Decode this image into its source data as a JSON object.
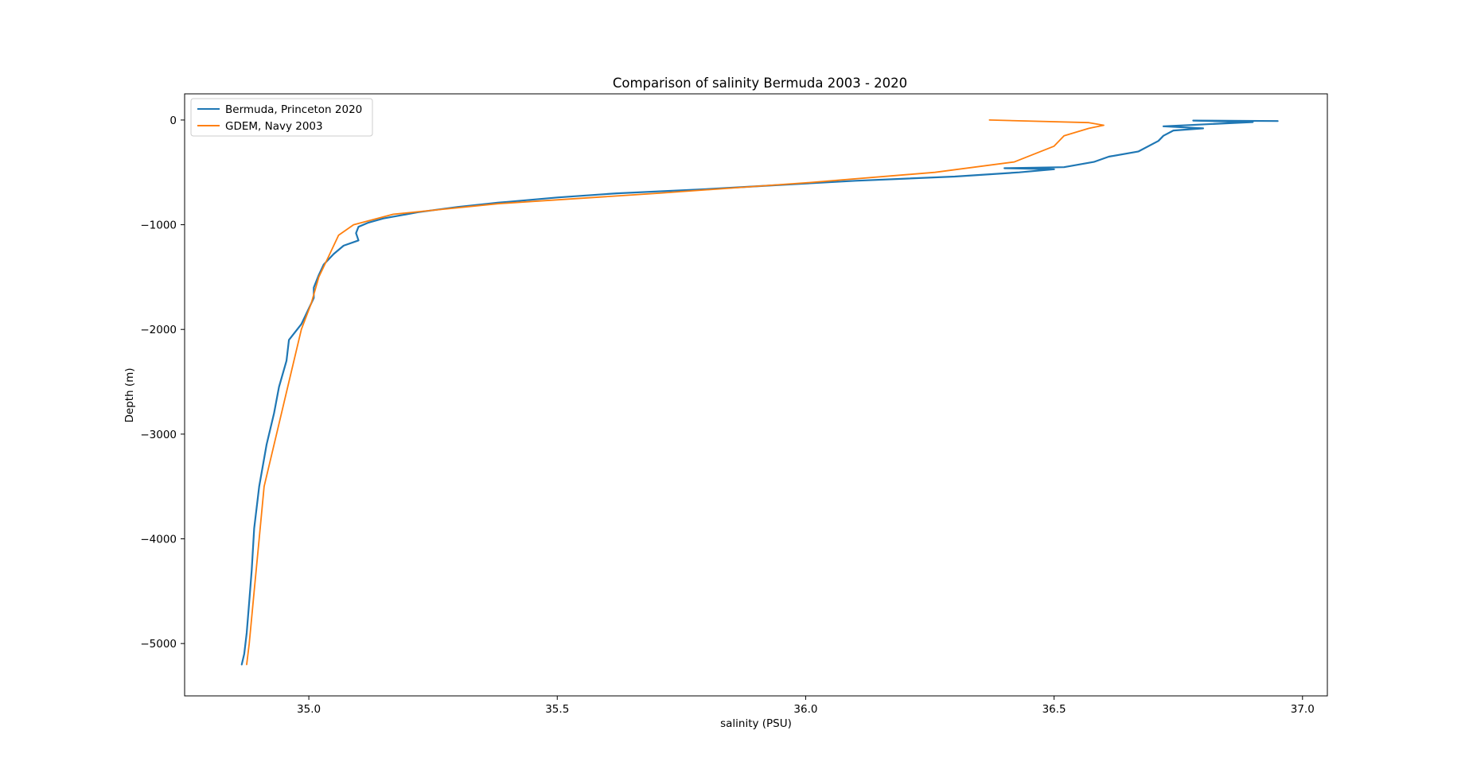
{
  "chart_data": {
    "type": "line",
    "title": "Comparison of salinity Bermuda 2003 - 2020",
    "xlabel": "salinity (PSU)",
    "ylabel": "Depth (m)",
    "xlim": [
      34.75,
      37.05
    ],
    "ylim": [
      -5500,
      250
    ],
    "x_ticks": [
      35.0,
      35.5,
      36.0,
      36.5,
      37.0
    ],
    "x_tick_labels": [
      "35.0",
      "35.5",
      "36.0",
      "36.5",
      "37.0"
    ],
    "y_ticks": [
      0,
      -1000,
      -2000,
      -3000,
      -4000,
      -5000
    ],
    "y_tick_labels": [
      "0",
      "−1000",
      "−2000",
      "−3000",
      "−4000",
      "−5000"
    ],
    "grid": false,
    "legend_position": "upper-left",
    "series": [
      {
        "name": "Bermuda, Princeton 2020",
        "color": "#1f77b4",
        "points": [
          [
            36.95,
            -10
          ],
          [
            36.78,
            -5
          ],
          [
            36.9,
            -20
          ],
          [
            36.72,
            -60
          ],
          [
            36.8,
            -80
          ],
          [
            36.74,
            -100
          ],
          [
            36.72,
            -150
          ],
          [
            36.71,
            -200
          ],
          [
            36.67,
            -300
          ],
          [
            36.61,
            -350
          ],
          [
            36.58,
            -400
          ],
          [
            36.52,
            -450
          ],
          [
            36.4,
            -460
          ],
          [
            36.5,
            -470
          ],
          [
            36.43,
            -500
          ],
          [
            36.3,
            -540
          ],
          [
            36.1,
            -580
          ],
          [
            35.95,
            -620
          ],
          [
            35.8,
            -660
          ],
          [
            35.62,
            -700
          ],
          [
            35.5,
            -740
          ],
          [
            35.38,
            -790
          ],
          [
            35.3,
            -830
          ],
          [
            35.22,
            -880
          ],
          [
            35.15,
            -940
          ],
          [
            35.12,
            -980
          ],
          [
            35.1,
            -1020
          ],
          [
            35.095,
            -1080
          ],
          [
            35.1,
            -1150
          ],
          [
            35.07,
            -1200
          ],
          [
            35.05,
            -1280
          ],
          [
            35.03,
            -1380
          ],
          [
            35.02,
            -1480
          ],
          [
            35.01,
            -1600
          ],
          [
            35.01,
            -1700
          ],
          [
            35.0,
            -1800
          ],
          [
            34.985,
            -1950
          ],
          [
            34.96,
            -2100
          ],
          [
            34.955,
            -2300
          ],
          [
            34.94,
            -2550
          ],
          [
            34.93,
            -2800
          ],
          [
            34.915,
            -3100
          ],
          [
            34.9,
            -3500
          ],
          [
            34.89,
            -3900
          ],
          [
            34.885,
            -4300
          ],
          [
            34.88,
            -4600
          ],
          [
            34.875,
            -4900
          ],
          [
            34.87,
            -5100
          ],
          [
            34.865,
            -5200
          ]
        ]
      },
      {
        "name": "GDEM, Navy 2003",
        "color": "#ff7f0e",
        "points": [
          [
            36.37,
            0
          ],
          [
            36.57,
            -25
          ],
          [
            36.6,
            -50
          ],
          [
            36.57,
            -80
          ],
          [
            36.52,
            -150
          ],
          [
            36.5,
            -250
          ],
          [
            36.42,
            -400
          ],
          [
            36.26,
            -500
          ],
          [
            36.0,
            -600
          ],
          [
            35.7,
            -700
          ],
          [
            35.38,
            -800
          ],
          [
            35.17,
            -900
          ],
          [
            35.09,
            -1000
          ],
          [
            35.06,
            -1100
          ],
          [
            35.04,
            -1300
          ],
          [
            35.02,
            -1500
          ],
          [
            35.005,
            -1750
          ],
          [
            34.985,
            -2000
          ],
          [
            34.96,
            -2500
          ],
          [
            34.935,
            -3000
          ],
          [
            34.91,
            -3500
          ],
          [
            34.9,
            -4000
          ],
          [
            34.89,
            -4500
          ],
          [
            34.88,
            -5000
          ],
          [
            34.875,
            -5200
          ]
        ]
      }
    ]
  }
}
